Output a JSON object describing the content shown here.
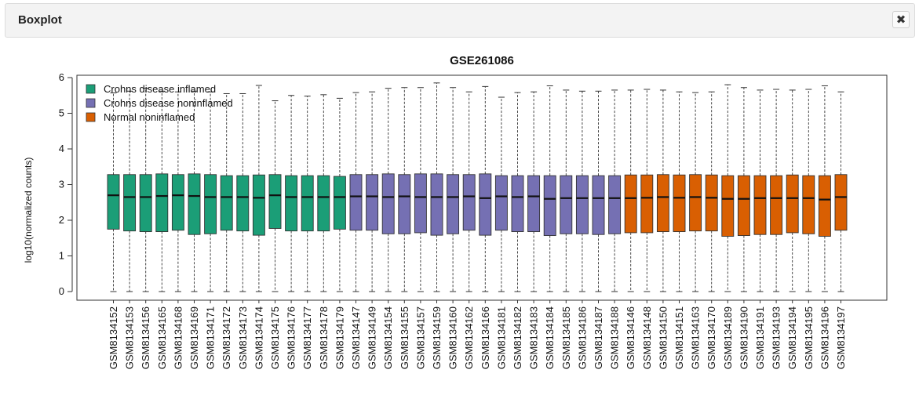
{
  "header": {
    "title": "Boxplot",
    "close_icon": "close-icon"
  },
  "chart_data": {
    "type": "boxplot",
    "title": "GSE261086",
    "xlabel": "",
    "ylabel": "log10(normalized counts)",
    "ylim": [
      -0.2,
      6.1
    ],
    "yticks": [
      0,
      1,
      2,
      3,
      4,
      5,
      6
    ],
    "legend": {
      "placement": "top-left",
      "entries": [
        {
          "label": "Crohns disease inflamed",
          "color": "#1b9e77"
        },
        {
          "label": "Crohns disease noninflamed",
          "color": "#7570b3"
        },
        {
          "label": "Normal noninflamed",
          "color": "#d95f02"
        }
      ]
    },
    "groups": {
      "inflamed": "#1b9e77",
      "noninflamed": "#7570b3",
      "normal": "#d95f02"
    },
    "samples": [
      {
        "name": "GSM8134152",
        "group": "inflamed",
        "min": 0,
        "q1": 1.75,
        "median": 2.7,
        "q3": 3.28,
        "max": 5.57
      },
      {
        "name": "GSM8134153",
        "group": "inflamed",
        "min": 0,
        "q1": 1.7,
        "median": 2.65,
        "q3": 3.28,
        "max": 5.62
      },
      {
        "name": "GSM8134156",
        "group": "inflamed",
        "min": 0,
        "q1": 1.68,
        "median": 2.65,
        "q3": 3.28,
        "max": 5.7
      },
      {
        "name": "GSM8134165",
        "group": "inflamed",
        "min": 0,
        "q1": 1.68,
        "median": 2.68,
        "q3": 3.3,
        "max": 5.62
      },
      {
        "name": "GSM8134168",
        "group": "inflamed",
        "min": 0,
        "q1": 1.72,
        "median": 2.7,
        "q3": 3.28,
        "max": 5.6
      },
      {
        "name": "GSM8134169",
        "group": "inflamed",
        "min": 0,
        "q1": 1.6,
        "median": 2.68,
        "q3": 3.3,
        "max": 5.62
      },
      {
        "name": "GSM8134171",
        "group": "inflamed",
        "min": 0,
        "q1": 1.62,
        "median": 2.65,
        "q3": 3.28,
        "max": 5.6
      },
      {
        "name": "GSM8134172",
        "group": "inflamed",
        "min": 0,
        "q1": 1.72,
        "median": 2.65,
        "q3": 3.25,
        "max": 5.55
      },
      {
        "name": "GSM8134173",
        "group": "inflamed",
        "min": 0,
        "q1": 1.7,
        "median": 2.65,
        "q3": 3.25,
        "max": 5.55
      },
      {
        "name": "GSM8134174",
        "group": "inflamed",
        "min": 0,
        "q1": 1.58,
        "median": 2.63,
        "q3": 3.27,
        "max": 5.78
      },
      {
        "name": "GSM8134175",
        "group": "inflamed",
        "min": 0,
        "q1": 1.77,
        "median": 2.7,
        "q3": 3.28,
        "max": 5.35
      },
      {
        "name": "GSM8134176",
        "group": "inflamed",
        "min": 0,
        "q1": 1.7,
        "median": 2.65,
        "q3": 3.25,
        "max": 5.5
      },
      {
        "name": "GSM8134177",
        "group": "inflamed",
        "min": 0,
        "q1": 1.7,
        "median": 2.65,
        "q3": 3.25,
        "max": 5.48
      },
      {
        "name": "GSM8134178",
        "group": "inflamed",
        "min": 0,
        "q1": 1.7,
        "median": 2.65,
        "q3": 3.25,
        "max": 5.52
      },
      {
        "name": "GSM8134179",
        "group": "inflamed",
        "min": 0,
        "q1": 1.75,
        "median": 2.65,
        "q3": 3.23,
        "max": 5.42
      },
      {
        "name": "GSM8134147",
        "group": "noninflamed",
        "min": 0,
        "q1": 1.72,
        "median": 2.67,
        "q3": 3.28,
        "max": 5.58
      },
      {
        "name": "GSM8134149",
        "group": "noninflamed",
        "min": 0,
        "q1": 1.72,
        "median": 2.67,
        "q3": 3.28,
        "max": 5.6
      },
      {
        "name": "GSM8134154",
        "group": "noninflamed",
        "min": 0,
        "q1": 1.62,
        "median": 2.65,
        "q3": 3.3,
        "max": 5.7
      },
      {
        "name": "GSM8134155",
        "group": "noninflamed",
        "min": 0,
        "q1": 1.62,
        "median": 2.67,
        "q3": 3.28,
        "max": 5.72
      },
      {
        "name": "GSM8134157",
        "group": "noninflamed",
        "min": 0,
        "q1": 1.65,
        "median": 2.65,
        "q3": 3.3,
        "max": 5.72
      },
      {
        "name": "GSM8134159",
        "group": "noninflamed",
        "min": 0,
        "q1": 1.58,
        "median": 2.65,
        "q3": 3.3,
        "max": 5.85
      },
      {
        "name": "GSM8134160",
        "group": "noninflamed",
        "min": 0,
        "q1": 1.62,
        "median": 2.65,
        "q3": 3.28,
        "max": 5.72
      },
      {
        "name": "GSM8134162",
        "group": "noninflamed",
        "min": 0,
        "q1": 1.72,
        "median": 2.67,
        "q3": 3.28,
        "max": 5.6
      },
      {
        "name": "GSM8134166",
        "group": "noninflamed",
        "min": 0,
        "q1": 1.58,
        "median": 2.62,
        "q3": 3.3,
        "max": 5.75
      },
      {
        "name": "GSM8134181",
        "group": "noninflamed",
        "min": 0,
        "q1": 1.72,
        "median": 2.67,
        "q3": 3.25,
        "max": 5.45
      },
      {
        "name": "GSM8134182",
        "group": "noninflamed",
        "min": 0,
        "q1": 1.68,
        "median": 2.65,
        "q3": 3.25,
        "max": 5.58
      },
      {
        "name": "GSM8134183",
        "group": "noninflamed",
        "min": 0,
        "q1": 1.68,
        "median": 2.67,
        "q3": 3.25,
        "max": 5.6
      },
      {
        "name": "GSM8134184",
        "group": "noninflamed",
        "min": 0,
        "q1": 1.57,
        "median": 2.6,
        "q3": 3.25,
        "max": 5.77
      },
      {
        "name": "GSM8134185",
        "group": "noninflamed",
        "min": 0,
        "q1": 1.62,
        "median": 2.62,
        "q3": 3.25,
        "max": 5.65
      },
      {
        "name": "GSM8134186",
        "group": "noninflamed",
        "min": 0,
        "q1": 1.62,
        "median": 2.62,
        "q3": 3.25,
        "max": 5.62
      },
      {
        "name": "GSM8134187",
        "group": "noninflamed",
        "min": 0,
        "q1": 1.6,
        "median": 2.62,
        "q3": 3.25,
        "max": 5.62
      },
      {
        "name": "GSM8134188",
        "group": "noninflamed",
        "min": 0,
        "q1": 1.62,
        "median": 2.62,
        "q3": 3.25,
        "max": 5.65
      },
      {
        "name": "GSM8134146",
        "group": "normal",
        "min": 0,
        "q1": 1.65,
        "median": 2.62,
        "q3": 3.27,
        "max": 5.65
      },
      {
        "name": "GSM8134148",
        "group": "normal",
        "min": 0,
        "q1": 1.65,
        "median": 2.63,
        "q3": 3.27,
        "max": 5.67
      },
      {
        "name": "GSM8134150",
        "group": "normal",
        "min": 0,
        "q1": 1.68,
        "median": 2.65,
        "q3": 3.28,
        "max": 5.65
      },
      {
        "name": "GSM8134151",
        "group": "normal",
        "min": 0,
        "q1": 1.68,
        "median": 2.63,
        "q3": 3.27,
        "max": 5.6
      },
      {
        "name": "GSM8134163",
        "group": "normal",
        "min": 0,
        "q1": 1.7,
        "median": 2.65,
        "q3": 3.28,
        "max": 5.58
      },
      {
        "name": "GSM8134170",
        "group": "normal",
        "min": 0,
        "q1": 1.7,
        "median": 2.63,
        "q3": 3.27,
        "max": 5.6
      },
      {
        "name": "GSM8134189",
        "group": "normal",
        "min": 0,
        "q1": 1.55,
        "median": 2.6,
        "q3": 3.25,
        "max": 5.8
      },
      {
        "name": "GSM8134190",
        "group": "normal",
        "min": 0,
        "q1": 1.57,
        "median": 2.6,
        "q3": 3.25,
        "max": 5.72
      },
      {
        "name": "GSM8134191",
        "group": "normal",
        "min": 0,
        "q1": 1.6,
        "median": 2.62,
        "q3": 3.25,
        "max": 5.65
      },
      {
        "name": "GSM8134193",
        "group": "normal",
        "min": 0,
        "q1": 1.6,
        "median": 2.62,
        "q3": 3.25,
        "max": 5.67
      },
      {
        "name": "GSM8134194",
        "group": "normal",
        "min": 0,
        "q1": 1.65,
        "median": 2.62,
        "q3": 3.27,
        "max": 5.65
      },
      {
        "name": "GSM8134195",
        "group": "normal",
        "min": 0,
        "q1": 1.62,
        "median": 2.62,
        "q3": 3.25,
        "max": 5.67
      },
      {
        "name": "GSM8134196",
        "group": "normal",
        "min": 0,
        "q1": 1.55,
        "median": 2.58,
        "q3": 3.25,
        "max": 5.77
      },
      {
        "name": "GSM8134197",
        "group": "normal",
        "min": 0,
        "q1": 1.72,
        "median": 2.65,
        "q3": 3.28,
        "max": 5.6
      }
    ]
  }
}
